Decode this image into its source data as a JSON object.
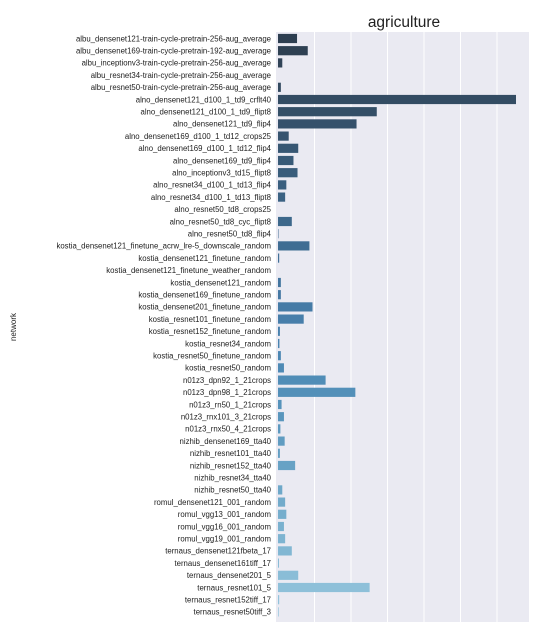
{
  "chart_data": {
    "type": "bar",
    "orientation": "horizontal",
    "title": "agriculture",
    "xlabel": "",
    "ylabel": "network",
    "xlim": [
      0,
      1.0
    ],
    "grid": true,
    "categories": [
      "albu_densenet121-train-cycle-pretrain-256-aug_average",
      "albu_densenet169-train-cycle-pretrain-192-aug_average",
      "albu_inceptionv3-train-cycle-pretrain-256-aug_average",
      "albu_resnet34-train-cycle-pretrain-256-aug_average",
      "albu_resnet50-train-cycle-pretrain-256-aug_average",
      "alno_densenet121_d100_1_td9_crflt40",
      "alno_densenet121_d100_1_td9_flipt8",
      "alno_densenet121_td9_flip4",
      "alno_densenet169_d100_1_td12_crops25",
      "alno_densenet169_d100_1_td12_flip4",
      "alno_densenet169_td9_flip4",
      "alno_inceptionv3_td15_flipt8",
      "alno_resnet34_d100_1_td13_flip4",
      "alno_resnet34_d100_1_td13_flipt8",
      "alno_resnet50_td8_crops25",
      "alno_resnet50_td8_cyc_flipt8",
      "alno_resnet50_td8_flip4",
      "kostia_densenet121_finetune_acrw_lre-5_downscale_random",
      "kostia_densenet121_finetune_random",
      "kostia_densenet121_finetune_weather_random",
      "kostia_densenet121_random",
      "kostia_densenet169_finetune_random",
      "kostia_densenet201_finetune_random",
      "kostia_resnet101_finetune_random",
      "kostia_resnet152_finetune_random",
      "kostia_resnet34_random",
      "kostia_resnet50_finetune_random",
      "kostia_resnet50_random",
      "n01z3_dpn92_1_21crops",
      "n01z3_dpn98_1_21crops",
      "n01z3_rn50_1_21crops",
      "n01z3_rnx101_3_21crops",
      "n01z3_rnx50_4_21crops",
      "nizhib_densenet169_tta40",
      "nizhib_resnet101_tta40",
      "nizhib_resnet152_tta40",
      "nizhib_resnet34_tta40",
      "nizhib_resnet50_tta40",
      "romul_densenet121_001_random",
      "romul_vgg13_001_random",
      "romul_vgg16_001_random",
      "romul_vgg19_001_random",
      "ternaus_densenet121fbeta_17",
      "ternaus_densenet161tiff_17",
      "ternaus_densenet201_5",
      "ternaus_resnet101_5",
      "ternaus_resnet152tiff_17",
      "ternaus_resnet50tiff_3"
    ],
    "values": [
      0.08,
      0.125,
      0.018,
      0.0,
      0.012,
      1.0,
      0.415,
      0.33,
      0.045,
      0.085,
      0.065,
      0.082,
      0.035,
      0.03,
      0.0,
      0.058,
      0.002,
      0.132,
      0.005,
      0.0,
      0.012,
      0.012,
      0.145,
      0.108,
      0.008,
      0.006,
      0.012,
      0.025,
      0.2,
      0.325,
      0.015,
      0.025,
      0.01,
      0.028,
      0.008,
      0.072,
      0.0,
      0.018,
      0.03,
      0.035,
      0.025,
      0.03,
      0.058,
      0.004,
      0.085,
      0.385,
      0.005,
      0.003
    ],
    "colors": [
      "#2d3e50",
      "#2e4052",
      "#304357",
      "#31465b",
      "#32495f",
      "#334c63",
      "#344f67",
      "#35516b",
      "#36546f",
      "#375773",
      "#385a77",
      "#395d7b",
      "#3a5f7f",
      "#3b6283",
      "#3c6587",
      "#3d688b",
      "#3e6a8f",
      "#3f6d93",
      "#417097",
      "#42729b",
      "#43759f",
      "#4478a3",
      "#457ba6",
      "#477eaa",
      "#4881ad",
      "#4a84b0",
      "#4c87b3",
      "#4e8ab5",
      "#508db7",
      "#5390b9",
      "#5693bb",
      "#5996bd",
      "#5c99bf",
      "#609cc1",
      "#639fc3",
      "#67a2c5",
      "#6aa5c7",
      "#6ea8c9",
      "#72abcb",
      "#76aecd",
      "#7ab1cf",
      "#7eb4d1",
      "#82b7d3",
      "#86bad5",
      "#8abdd7",
      "#8ec0d9",
      "#92c3db",
      "#96c6dd"
    ]
  }
}
